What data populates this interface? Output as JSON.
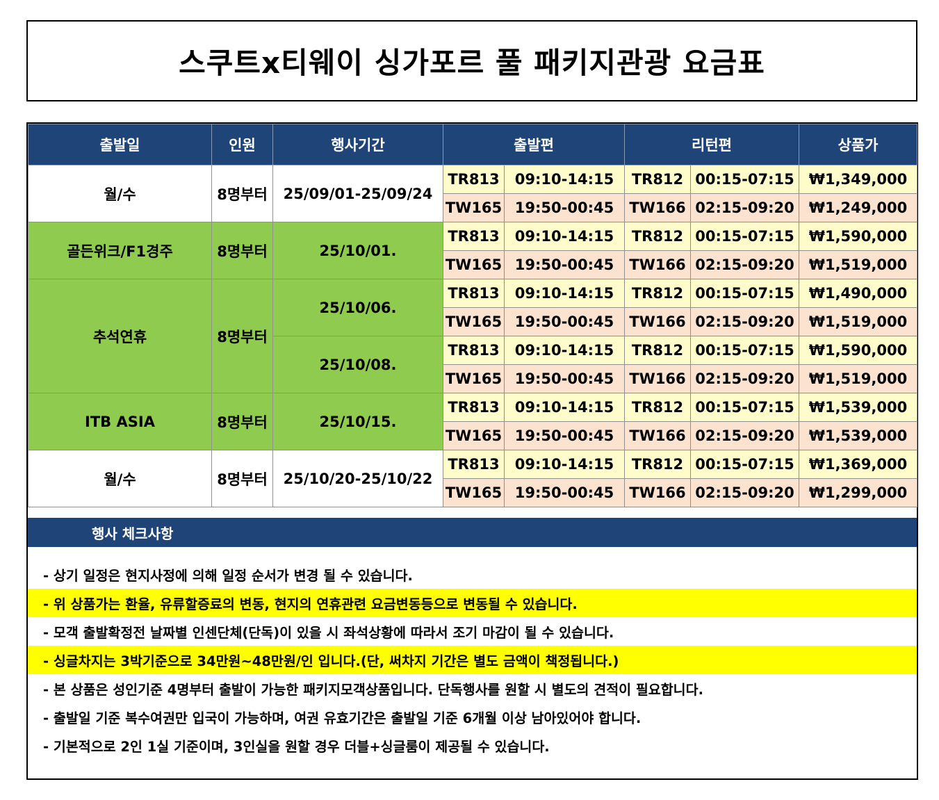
{
  "title": "스쿠트x티웨이  싱가포르 풀 패키지관광 요금표",
  "headers": [
    "출발일",
    "인원",
    "행사기간",
    "출발편",
    "리턴편",
    "상품가"
  ],
  "groups": [
    {
      "label": "월/수",
      "pax": "8명부터",
      "periods": [
        "25/09/01-25/09/24"
      ],
      "color": "white"
    },
    {
      "label": "골든위크/F1경주",
      "pax": "8명부터",
      "periods": [
        "25/10/01."
      ],
      "color": "green"
    },
    {
      "label": "추석연휴",
      "pax": "8명부터",
      "periods": [
        "25/10/06.",
        "25/10/08."
      ],
      "color": "green"
    },
    {
      "label": "ITB ASIA",
      "pax": "8명부터",
      "periods": [
        "25/10/15."
      ],
      "color": "green"
    },
    {
      "label": "월/수",
      "pax": "8명부터",
      "periods": [
        "25/10/20-25/10/22"
      ],
      "color": "white"
    }
  ],
  "rows": [
    {
      "dep_flight": "TR813",
      "dep_time": "09:10-14:15",
      "ret_flight": "TR812",
      "ret_time": "00:15-07:15",
      "price": "₩1,349,000"
    },
    {
      "dep_flight": "TW165",
      "dep_time": "19:50-00:45",
      "ret_flight": "TW166",
      "ret_time": "02:15-09:20",
      "price": "₩1,249,000"
    },
    {
      "dep_flight": "TR813",
      "dep_time": "09:10-14:15",
      "ret_flight": "TR812",
      "ret_time": "00:15-07:15",
      "price": "₩1,590,000"
    },
    {
      "dep_flight": "TW165",
      "dep_time": "19:50-00:45",
      "ret_flight": "TW166",
      "ret_time": "02:15-09:20",
      "price": "₩1,519,000"
    },
    {
      "dep_flight": "TR813",
      "dep_time": "09:10-14:15",
      "ret_flight": "TR812",
      "ret_time": "00:15-07:15",
      "price": "₩1,490,000"
    },
    {
      "dep_flight": "TW165",
      "dep_time": "19:50-00:45",
      "ret_flight": "TW166",
      "ret_time": "02:15-09:20",
      "price": "₩1,519,000"
    },
    {
      "dep_flight": "TR813",
      "dep_time": "09:10-14:15",
      "ret_flight": "TR812",
      "ret_time": "00:15-07:15",
      "price": "₩1,590,000"
    },
    {
      "dep_flight": "TW165",
      "dep_time": "19:50-00:45",
      "ret_flight": "TW166",
      "ret_time": "02:15-09:20",
      "price": "₩1,519,000"
    },
    {
      "dep_flight": "TR813",
      "dep_time": "09:10-14:15",
      "ret_flight": "TR812",
      "ret_time": "00:15-07:15",
      "price": "₩1,539,000"
    },
    {
      "dep_flight": "TW165",
      "dep_time": "19:50-00:45",
      "ret_flight": "TW166",
      "ret_time": "02:15-09:20",
      "price": "₩1,539,000"
    },
    {
      "dep_flight": "TR813",
      "dep_time": "09:10-14:15",
      "ret_flight": "TR812",
      "ret_time": "00:15-07:15",
      "price": "₩1,369,000"
    },
    {
      "dep_flight": "TW165",
      "dep_time": "19:50-00:45",
      "ret_flight": "TW166",
      "ret_time": "02:15-09:20",
      "price": "₩1,299,000"
    }
  ],
  "check_title": "행사 체크사항",
  "notes": [
    {
      "text": "- 상기 일정은 현지사정에 의해 일정 순서가 변경 될 수 있습니다.",
      "highlight": false
    },
    {
      "text": "- 위 상품가는 환율, 유류할증료의 변동, 현지의 연휴관련 요금변동등으로 변동될 수 있습니다.",
      "highlight": true
    },
    {
      "text": "- 모객 출발확정전 날짜별 인센단체(단독)이 있을 시 좌석상황에 따라서 조기 마감이 될 수 있습니다.",
      "highlight": false
    },
    {
      "text": "- 싱글차지는 3박기준으로 34만원~48만원/인 입니다.(단, 써차지 기간은 별도 금액이 책정됩니다.)",
      "highlight": true
    },
    {
      "text": "- 본 상품은 성인기준 4명부터 출발이 가능한 패키지모객상품입니다. 단독행사를 원할 시 별도의 견적이 필요합니다.",
      "highlight": false
    },
    {
      "text": "- 출발일 기준 복수여권만 입국이 가능하며, 여권 유효기간은 출발일 기준 6개월 이상 남아있어야 합니다.",
      "highlight": false
    },
    {
      "text": "- 기본적으로 2인 1실 기준이며, 3인실을 원할 경우 더블+싱글룸이 제공될 수 있습니다.",
      "highlight": false
    }
  ],
  "colors": {
    "header_navy": "#1f4477",
    "green": "#8fcb4e",
    "row_yellow": "#fffccc",
    "row_peach": "#fce3d0",
    "highlight": "#ffff00"
  }
}
